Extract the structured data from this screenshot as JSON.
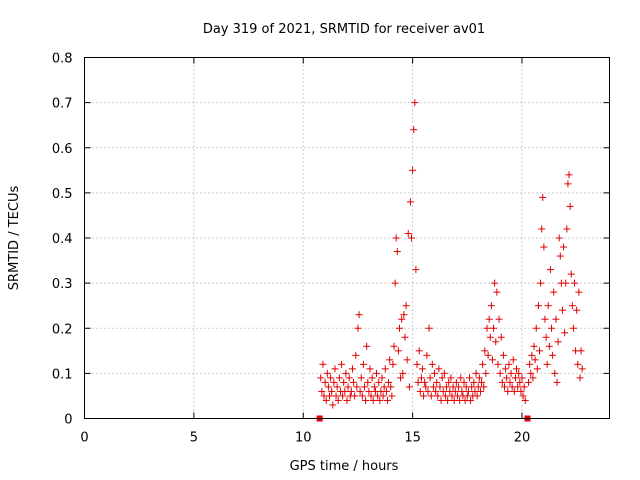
{
  "chart_data": {
    "type": "scatter",
    "title": "Day 319 of 2021, SRMTID for receiver av01",
    "xlabel": "GPS time / hours",
    "ylabel": "SRMTID / TECUs",
    "xlim": [
      0,
      24
    ],
    "ylim": [
      0,
      0.8
    ],
    "xticks": [
      0,
      5,
      10,
      15,
      20
    ],
    "xtick_labels": [
      "0",
      "5",
      "10",
      "15",
      "20"
    ],
    "yticks": [
      0,
      0.1,
      0.2,
      0.3,
      0.4,
      0.5,
      0.6,
      0.7,
      0.8
    ],
    "ytick_labels": [
      "0",
      "0.1",
      "0.2",
      "0.3",
      "0.4",
      "0.5",
      "0.6",
      "0.7",
      "0.8"
    ],
    "grid": true,
    "marker": "+",
    "color": "#e00000",
    "zero_markers": [
      {
        "x": 10.75,
        "y": 0
      },
      {
        "x": 20.25,
        "y": 0
      }
    ],
    "series": [
      {
        "name": "SRMTID",
        "points": [
          [
            10.8,
            0.09
          ],
          [
            10.85,
            0.06
          ],
          [
            10.9,
            0.12
          ],
          [
            10.95,
            0.05
          ],
          [
            11.0,
            0.08
          ],
          [
            11.05,
            0.04
          ],
          [
            11.1,
            0.1
          ],
          [
            11.15,
            0.07
          ],
          [
            11.2,
            0.05
          ],
          [
            11.25,
            0.09
          ],
          [
            11.3,
            0.06
          ],
          [
            11.35,
            0.03
          ],
          [
            11.4,
            0.08
          ],
          [
            11.45,
            0.11
          ],
          [
            11.5,
            0.05
          ],
          [
            11.55,
            0.07
          ],
          [
            11.6,
            0.04
          ],
          [
            11.65,
            0.09
          ],
          [
            11.7,
            0.06
          ],
          [
            11.75,
            0.12
          ],
          [
            11.8,
            0.05
          ],
          [
            11.85,
            0.08
          ],
          [
            11.9,
            0.06
          ],
          [
            11.95,
            0.1
          ],
          [
            12.0,
            0.04
          ],
          [
            12.05,
            0.07
          ],
          [
            12.1,
            0.09
          ],
          [
            12.15,
            0.05
          ],
          [
            12.2,
            0.06
          ],
          [
            12.25,
            0.11
          ],
          [
            12.3,
            0.08
          ],
          [
            12.35,
            0.05
          ],
          [
            12.4,
            0.14
          ],
          [
            12.45,
            0.07
          ],
          [
            12.5,
            0.2
          ],
          [
            12.55,
            0.23
          ],
          [
            12.6,
            0.06
          ],
          [
            12.65,
            0.09
          ],
          [
            12.7,
            0.05
          ],
          [
            12.75,
            0.12
          ],
          [
            12.8,
            0.07
          ],
          [
            12.85,
            0.04
          ],
          [
            12.9,
            0.16
          ],
          [
            12.95,
            0.08
          ],
          [
            13.0,
            0.06
          ],
          [
            13.05,
            0.11
          ],
          [
            13.1,
            0.05
          ],
          [
            13.15,
            0.09
          ],
          [
            13.2,
            0.04
          ],
          [
            13.25,
            0.07
          ],
          [
            13.3,
            0.06
          ],
          [
            13.35,
            0.1
          ],
          [
            13.4,
            0.05
          ],
          [
            13.45,
            0.08
          ],
          [
            13.5,
            0.04
          ],
          [
            13.55,
            0.06
          ],
          [
            13.6,
            0.09
          ],
          [
            13.65,
            0.05
          ],
          [
            13.7,
            0.07
          ],
          [
            13.75,
            0.11
          ],
          [
            13.8,
            0.06
          ],
          [
            13.85,
            0.04
          ],
          [
            13.9,
            0.08
          ],
          [
            13.95,
            0.13
          ],
          [
            14.0,
            0.07
          ],
          [
            14.05,
            0.05
          ],
          [
            14.1,
            0.12
          ],
          [
            14.15,
            0.16
          ],
          [
            14.2,
            0.3
          ],
          [
            14.25,
            0.4
          ],
          [
            14.3,
            0.37
          ],
          [
            14.35,
            0.15
          ],
          [
            14.4,
            0.2
          ],
          [
            14.45,
            0.09
          ],
          [
            14.5,
            0.22
          ],
          [
            14.55,
            0.1
          ],
          [
            14.6,
            0.23
          ],
          [
            14.65,
            0.18
          ],
          [
            14.7,
            0.25
          ],
          [
            14.75,
            0.13
          ],
          [
            14.8,
            0.41
          ],
          [
            14.85,
            0.07
          ],
          [
            14.9,
            0.48
          ],
          [
            14.95,
            0.4
          ],
          [
            15.0,
            0.55
          ],
          [
            15.05,
            0.64
          ],
          [
            15.1,
            0.7
          ],
          [
            15.15,
            0.33
          ],
          [
            15.2,
            0.12
          ],
          [
            15.25,
            0.08
          ],
          [
            15.3,
            0.15
          ],
          [
            15.35,
            0.06
          ],
          [
            15.4,
            0.09
          ],
          [
            15.45,
            0.11
          ],
          [
            15.5,
            0.05
          ],
          [
            15.55,
            0.08
          ],
          [
            15.6,
            0.07
          ],
          [
            15.65,
            0.14
          ],
          [
            15.7,
            0.06
          ],
          [
            15.75,
            0.2
          ],
          [
            15.8,
            0.09
          ],
          [
            15.85,
            0.05
          ],
          [
            15.9,
            0.12
          ],
          [
            15.95,
            0.07
          ],
          [
            16.0,
            0.1
          ],
          [
            16.05,
            0.06
          ],
          [
            16.1,
            0.08
          ],
          [
            16.15,
            0.05
          ],
          [
            16.2,
            0.11
          ],
          [
            16.25,
            0.07
          ],
          [
            16.3,
            0.04
          ],
          [
            16.35,
            0.09
          ],
          [
            16.4,
            0.06
          ],
          [
            16.45,
            0.1
          ],
          [
            16.5,
            0.05
          ],
          [
            16.55,
            0.07
          ],
          [
            16.6,
            0.04
          ],
          [
            16.65,
            0.08
          ],
          [
            16.7,
            0.06
          ],
          [
            16.75,
            0.09
          ],
          [
            16.8,
            0.05
          ],
          [
            16.85,
            0.07
          ],
          [
            16.9,
            0.04
          ],
          [
            16.95,
            0.06
          ],
          [
            17.0,
            0.08
          ],
          [
            17.05,
            0.05
          ],
          [
            17.1,
            0.07
          ],
          [
            17.15,
            0.04
          ],
          [
            17.2,
            0.09
          ],
          [
            17.25,
            0.06
          ],
          [
            17.3,
            0.05
          ],
          [
            17.35,
            0.08
          ],
          [
            17.4,
            0.04
          ],
          [
            17.45,
            0.07
          ],
          [
            17.5,
            0.05
          ],
          [
            17.55,
            0.06
          ],
          [
            17.6,
            0.09
          ],
          [
            17.65,
            0.04
          ],
          [
            17.7,
            0.07
          ],
          [
            17.75,
            0.05
          ],
          [
            17.8,
            0.08
          ],
          [
            17.85,
            0.06
          ],
          [
            17.9,
            0.1
          ],
          [
            17.95,
            0.05
          ],
          [
            18.0,
            0.07
          ],
          [
            18.05,
            0.09
          ],
          [
            18.1,
            0.06
          ],
          [
            18.15,
            0.08
          ],
          [
            18.2,
            0.12
          ],
          [
            18.25,
            0.07
          ],
          [
            18.3,
            0.15
          ],
          [
            18.35,
            0.1
          ],
          [
            18.4,
            0.2
          ],
          [
            18.45,
            0.14
          ],
          [
            18.5,
            0.22
          ],
          [
            18.55,
            0.18
          ],
          [
            18.6,
            0.25
          ],
          [
            18.65,
            0.13
          ],
          [
            18.7,
            0.2
          ],
          [
            18.75,
            0.3
          ],
          [
            18.8,
            0.17
          ],
          [
            18.85,
            0.28
          ],
          [
            18.9,
            0.12
          ],
          [
            18.95,
            0.22
          ],
          [
            19.0,
            0.1
          ],
          [
            19.05,
            0.18
          ],
          [
            19.1,
            0.08
          ],
          [
            19.15,
            0.14
          ],
          [
            19.2,
            0.07
          ],
          [
            19.25,
            0.11
          ],
          [
            19.3,
            0.09
          ],
          [
            19.35,
            0.06
          ],
          [
            19.4,
            0.12
          ],
          [
            19.45,
            0.08
          ],
          [
            19.5,
            0.1
          ],
          [
            19.55,
            0.07
          ],
          [
            19.6,
            0.13
          ],
          [
            19.65,
            0.06
          ],
          [
            19.7,
            0.09
          ],
          [
            19.75,
            0.11
          ],
          [
            19.8,
            0.07
          ],
          [
            19.85,
            0.1
          ],
          [
            19.9,
            0.08
          ],
          [
            19.95,
            0.06
          ],
          [
            20.0,
            0.09
          ],
          [
            20.05,
            0.05
          ],
          [
            20.1,
            0.07
          ],
          [
            20.15,
            0.04
          ],
          [
            20.3,
            0.08
          ],
          [
            20.35,
            0.12
          ],
          [
            20.4,
            0.1
          ],
          [
            20.45,
            0.14
          ],
          [
            20.5,
            0.09
          ],
          [
            20.55,
            0.16
          ],
          [
            20.6,
            0.13
          ],
          [
            20.65,
            0.2
          ],
          [
            20.7,
            0.11
          ],
          [
            20.75,
            0.25
          ],
          [
            20.8,
            0.15
          ],
          [
            20.85,
            0.3
          ],
          [
            20.9,
            0.42
          ],
          [
            20.95,
            0.49
          ],
          [
            21.0,
            0.38
          ],
          [
            21.05,
            0.22
          ],
          [
            21.1,
            0.18
          ],
          [
            21.15,
            0.12
          ],
          [
            21.2,
            0.25
          ],
          [
            21.25,
            0.16
          ],
          [
            21.3,
            0.33
          ],
          [
            21.35,
            0.2
          ],
          [
            21.4,
            0.14
          ],
          [
            21.45,
            0.28
          ],
          [
            21.5,
            0.1
          ],
          [
            21.55,
            0.22
          ],
          [
            21.6,
            0.08
          ],
          [
            21.65,
            0.17
          ],
          [
            21.7,
            0.4
          ],
          [
            21.75,
            0.36
          ],
          [
            21.8,
            0.3
          ],
          [
            21.85,
            0.24
          ],
          [
            21.9,
            0.38
          ],
          [
            21.95,
            0.19
          ],
          [
            22.0,
            0.3
          ],
          [
            22.05,
            0.42
          ],
          [
            22.1,
            0.52
          ],
          [
            22.15,
            0.54
          ],
          [
            22.2,
            0.47
          ],
          [
            22.25,
            0.32
          ],
          [
            22.3,
            0.25
          ],
          [
            22.35,
            0.2
          ],
          [
            22.4,
            0.3
          ],
          [
            22.45,
            0.15
          ],
          [
            22.5,
            0.24
          ],
          [
            22.55,
            0.12
          ],
          [
            22.6,
            0.28
          ],
          [
            22.65,
            0.09
          ],
          [
            22.7,
            0.15
          ],
          [
            22.75,
            0.11
          ]
        ]
      }
    ]
  }
}
